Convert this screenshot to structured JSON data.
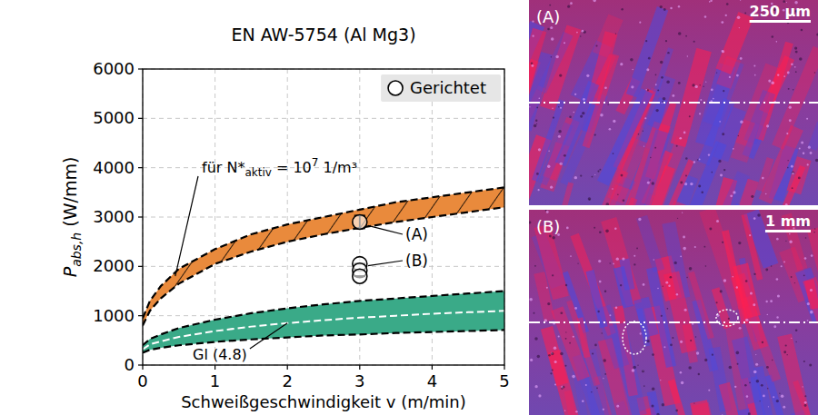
{
  "chart_data": {
    "type": "line",
    "title": "EN AW-5754 (Al Mg3)",
    "xlabel": "Schweißgeschwindigkeit v (m/min)",
    "ylabel": {
      "symbol": "P",
      "subscript": "abs,h",
      "unit": " (W/mm)"
    },
    "xlim": [
      0,
      5
    ],
    "xticks": [
      0,
      1,
      2,
      3,
      4,
      5
    ],
    "ylim": [
      0,
      6000
    ],
    "yticks": [
      0,
      1000,
      2000,
      3000,
      4000,
      5000,
      6000
    ],
    "grid": true,
    "legend": "upper right",
    "series": [
      {
        "type": "band",
        "color": "#e98a3c",
        "marker": "hatch",
        "line_style": "dashed",
        "x": [
          0,
          0.1,
          0.25,
          0.5,
          1,
          1.5,
          2,
          2.5,
          3,
          3.5,
          4,
          4.5,
          5
        ],
        "lower": [
          800,
          1100,
          1350,
          1650,
          2050,
          2300,
          2500,
          2650,
          2780,
          2900,
          3000,
          3100,
          3200
        ],
        "upper": [
          950,
          1300,
          1600,
          1950,
          2350,
          2650,
          2850,
          3000,
          3150,
          3300,
          3400,
          3500,
          3600
        ]
      },
      {
        "type": "band",
        "color": "#3aaa88",
        "line_style": "dashed",
        "x": [
          0,
          0.1,
          0.25,
          0.5,
          1,
          1.5,
          2,
          2.5,
          3,
          3.5,
          4,
          4.5,
          5
        ],
        "lower": [
          250,
          310,
          350,
          400,
          470,
          520,
          560,
          600,
          620,
          650,
          670,
          690,
          710
        ],
        "upper": [
          400,
          530,
          620,
          750,
          920,
          1050,
          1150,
          1230,
          1300,
          1350,
          1400,
          1450,
          1500
        ]
      },
      {
        "type": "line",
        "color": "#ffffff",
        "line_style": "dashed",
        "x": [
          0,
          0.1,
          0.25,
          0.5,
          1,
          1.5,
          2,
          2.5,
          3,
          3.5,
          4,
          4.5,
          5
        ],
        "values": [
          320,
          420,
          480,
          570,
          690,
          780,
          850,
          910,
          960,
          1000,
          1040,
          1070,
          1100
        ]
      },
      {
        "name": "Gerichtet",
        "type": "scatter",
        "marker": "circle",
        "color": "#000000",
        "x": [
          3,
          3,
          3,
          3
        ],
        "values": [
          2900,
          2050,
          1920,
          1800
        ],
        "error": [
          130,
          0,
          0,
          0
        ]
      }
    ],
    "annotations": [
      {
        "text": "für N*",
        "subscript": "aktiv",
        "after": " = 10",
        "superscript": "7",
        "unit": " 1/m³"
      },
      {
        "text": "Gl (4.8)"
      },
      {
        "text": "(A)"
      },
      {
        "text": "(B)"
      }
    ]
  },
  "images": [
    {
      "label": "(A)",
      "scale_bar": "250 µm"
    },
    {
      "label": "(B)",
      "scale_bar": "1 mm"
    }
  ]
}
